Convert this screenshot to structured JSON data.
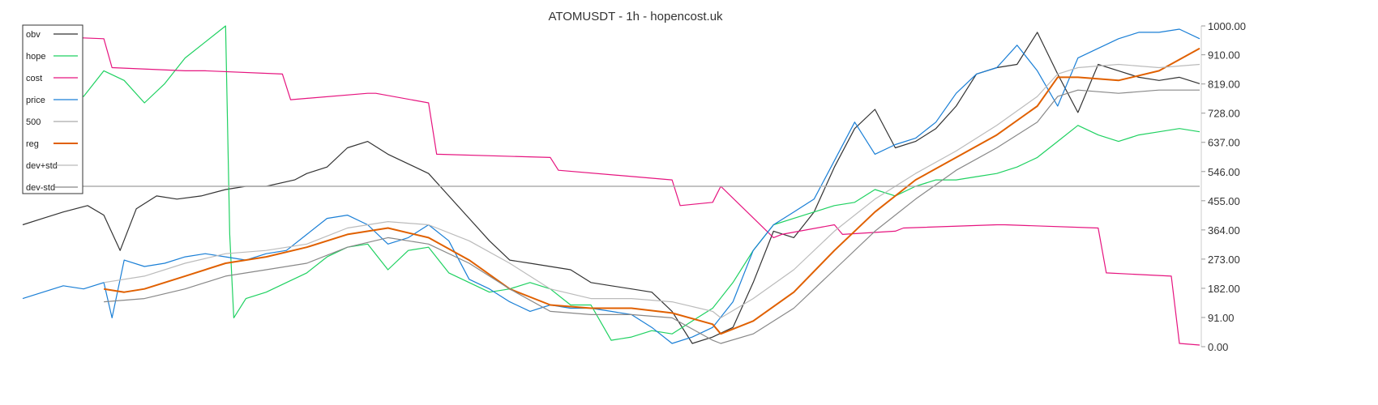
{
  "chart_data": {
    "type": "line",
    "title": "ATOMUSDT - 1h - hopencost.uk",
    "xlabel": "",
    "ylabel": "",
    "ylim": [
      0,
      1000
    ],
    "y_ticks": [
      "1000.00",
      "910.00",
      "819.00",
      "728.00",
      "637.00",
      "546.00",
      "455.00",
      "364.00",
      "273.00",
      "182.00",
      "91.00",
      "0.00"
    ],
    "y_tick_values": [
      1000,
      910,
      819,
      728,
      637,
      546,
      455,
      364,
      273,
      182,
      91,
      0
    ],
    "x_range": [
      0,
      290
    ],
    "grid": false,
    "legend_position": "top-left",
    "reference_line": {
      "y": 500,
      "color": "#aaaaaa"
    },
    "series": [
      {
        "name": "obv",
        "color": "#333333",
        "x": [
          0,
          5,
          10,
          16,
          20,
          24,
          28,
          33,
          38,
          44,
          50,
          55,
          60,
          67,
          70,
          75,
          80,
          85,
          90,
          95,
          100,
          105,
          110,
          115,
          120,
          125,
          130,
          135,
          140,
          145,
          150,
          155,
          160,
          165,
          170,
          175,
          180,
          185,
          190,
          195,
          200,
          205,
          210,
          215,
          220,
          225,
          230,
          235,
          240,
          245,
          250,
          255,
          260,
          265,
          270,
          275,
          280,
          285,
          290
        ],
        "values": [
          380,
          400,
          420,
          440,
          410,
          300,
          430,
          470,
          460,
          470,
          490,
          500,
          500,
          520,
          540,
          560,
          620,
          640,
          600,
          570,
          540,
          470,
          400,
          330,
          270,
          260,
          250,
          240,
          200,
          190,
          180,
          170,
          110,
          10,
          30,
          60,
          200,
          360,
          340,
          420,
          560,
          680,
          740,
          620,
          640,
          680,
          750,
          850,
          870,
          880,
          980,
          850,
          730,
          880,
          860,
          840,
          830,
          840,
          820
        ]
      },
      {
        "name": "hope",
        "color": "#1fd161",
        "x": [
          0,
          5,
          10,
          15,
          20,
          25,
          30,
          35,
          40,
          45,
          50,
          51,
          52,
          55,
          60,
          65,
          70,
          75,
          80,
          85,
          90,
          95,
          100,
          105,
          110,
          115,
          120,
          125,
          130,
          135,
          140,
          145,
          150,
          155,
          160,
          165,
          170,
          175,
          180,
          185,
          190,
          195,
          200,
          205,
          210,
          215,
          220,
          225,
          230,
          235,
          240,
          245,
          250,
          255,
          260,
          265,
          270,
          275,
          280,
          285,
          290
        ],
        "values": [
          800,
          830,
          810,
          780,
          860,
          830,
          760,
          820,
          900,
          950,
          1000,
          350,
          90,
          150,
          170,
          200,
          230,
          280,
          310,
          320,
          240,
          300,
          310,
          230,
          200,
          170,
          180,
          200,
          180,
          130,
          130,
          20,
          30,
          50,
          40,
          80,
          120,
          200,
          300,
          380,
          400,
          420,
          440,
          450,
          490,
          470,
          500,
          520,
          520,
          530,
          540,
          560,
          590,
          640,
          690,
          660,
          640,
          660,
          670,
          680,
          670
        ]
      },
      {
        "name": "cost",
        "color": "#e6147f",
        "x": [
          0,
          20,
          22,
          40,
          45,
          64,
          66,
          85,
          87,
          100,
          102,
          130,
          132,
          160,
          162,
          170,
          172,
          185,
          187,
          200,
          202,
          215,
          217,
          240,
          242,
          265,
          267,
          283,
          285,
          290
        ],
        "values": [
          970,
          960,
          870,
          860,
          860,
          850,
          770,
          790,
          790,
          760,
          600,
          590,
          550,
          520,
          440,
          450,
          500,
          340,
          350,
          380,
          350,
          360,
          370,
          380,
          380,
          370,
          230,
          220,
          10,
          5
        ]
      },
      {
        "name": "price",
        "color": "#1a7fd6",
        "x": [
          0,
          5,
          10,
          15,
          20,
          22,
          25,
          30,
          35,
          40,
          45,
          50,
          55,
          60,
          65,
          70,
          75,
          80,
          85,
          90,
          95,
          100,
          105,
          110,
          115,
          120,
          125,
          130,
          135,
          140,
          145,
          150,
          155,
          160,
          165,
          170,
          175,
          180,
          185,
          190,
          195,
          200,
          205,
          210,
          215,
          220,
          225,
          230,
          235,
          240,
          245,
          250,
          255,
          260,
          265,
          270,
          275,
          280,
          285,
          290
        ],
        "values": [
          150,
          170,
          190,
          180,
          200,
          90,
          270,
          250,
          260,
          280,
          290,
          280,
          270,
          290,
          300,
          350,
          400,
          410,
          380,
          320,
          340,
          380,
          330,
          210,
          180,
          140,
          110,
          130,
          120,
          120,
          110,
          100,
          60,
          10,
          30,
          60,
          140,
          300,
          380,
          420,
          460,
          580,
          700,
          600,
          630,
          650,
          700,
          790,
          850,
          870,
          940,
          860,
          750,
          900,
          930,
          960,
          980,
          980,
          990,
          960
        ]
      },
      {
        "name": "500",
        "color": "#aaaaaa",
        "x": [
          0,
          290
        ],
        "values": [
          500,
          500
        ]
      },
      {
        "name": "reg",
        "color": "#e06000",
        "x": [
          20,
          25,
          30,
          40,
          50,
          60,
          70,
          80,
          90,
          100,
          110,
          120,
          130,
          140,
          150,
          160,
          170,
          172,
          180,
          190,
          200,
          210,
          220,
          230,
          240,
          250,
          255,
          260,
          270,
          280,
          290
        ],
        "values": [
          180,
          170,
          180,
          220,
          260,
          280,
          310,
          350,
          370,
          340,
          270,
          180,
          130,
          120,
          120,
          105,
          70,
          40,
          80,
          170,
          300,
          420,
          520,
          590,
          660,
          750,
          840,
          840,
          830,
          860,
          930
        ]
      },
      {
        "name": "dev+std",
        "color": "#bbbbbb",
        "x": [
          20,
          30,
          40,
          50,
          60,
          70,
          80,
          90,
          100,
          110,
          120,
          130,
          140,
          150,
          160,
          170,
          172,
          180,
          190,
          200,
          210,
          220,
          230,
          240,
          250,
          255,
          260,
          270,
          280,
          290
        ],
        "values": [
          200,
          220,
          260,
          290,
          300,
          320,
          370,
          390,
          380,
          330,
          260,
          180,
          150,
          150,
          140,
          110,
          90,
          150,
          240,
          360,
          460,
          540,
          610,
          690,
          780,
          850,
          870,
          880,
          870,
          880
        ]
      },
      {
        "name": "dev-std",
        "color": "#888888",
        "x": [
          20,
          30,
          40,
          50,
          60,
          70,
          80,
          90,
          100,
          110,
          120,
          130,
          140,
          150,
          160,
          170,
          172,
          180,
          190,
          200,
          210,
          220,
          230,
          240,
          250,
          255,
          260,
          270,
          280,
          290
        ],
        "values": [
          140,
          150,
          180,
          220,
          240,
          260,
          310,
          340,
          320,
          260,
          180,
          110,
          100,
          100,
          90,
          20,
          10,
          40,
          120,
          240,
          360,
          460,
          550,
          620,
          700,
          780,
          800,
          790,
          800,
          800
        ]
      }
    ]
  }
}
